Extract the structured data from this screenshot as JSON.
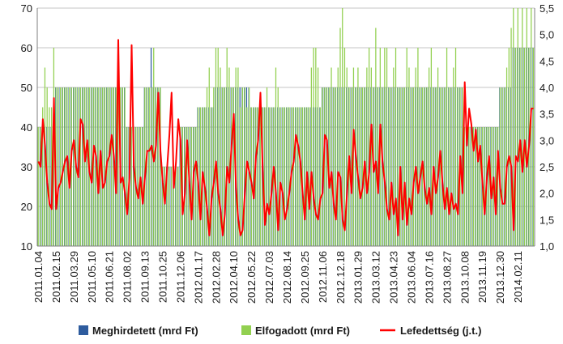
{
  "chart_data": {
    "type": "bar",
    "title": "",
    "xlabel": "",
    "ylabel": "",
    "ylabel_right": "",
    "ylim": [
      10,
      70
    ],
    "y2lim": [
      1.0,
      5.5
    ],
    "grid": "horizontal",
    "legend_position": "bottom",
    "y_ticks": [
      "10",
      "20",
      "30",
      "40",
      "50",
      "60",
      "70"
    ],
    "y2_ticks": [
      "1,0",
      "1,5",
      "2,0",
      "2,5",
      "3,0",
      "3,5",
      "4,0",
      "4,5",
      "5,0",
      "5,5"
    ],
    "x_labels": [
      "2011.01.04",
      "2011.02.15",
      "2011.03.29",
      "2011.05.10",
      "2011.06.21",
      "2011.08.02",
      "2011.09.13",
      "2011.10.25",
      "2011.12.06",
      "2012.01.17",
      "2012.02.28",
      "2012.04.10",
      "2012.05.22",
      "2012.07.03",
      "2012.08.14",
      "2012.09.25",
      "2012.11.06",
      "2012.12.18",
      "2013.01.29",
      "2013.03.12",
      "2013.04.23",
      "2013.06.04",
      "2013.07.16",
      "2013.08.27",
      "2013.10.08",
      "2013.11.19",
      "2013.12.30",
      "2014.02.11"
    ],
    "series": [
      {
        "name": "Meghirdetett (mrd Ft)",
        "axis": "left",
        "color": "#2e5c9e",
        "values": [
          40,
          40,
          40,
          40,
          40,
          40,
          40,
          40,
          50,
          50,
          50,
          50,
          50,
          50,
          50,
          50,
          50,
          50,
          50,
          50,
          50,
          50,
          50,
          50,
          50,
          50,
          50,
          50,
          50,
          50,
          50,
          50,
          50,
          50,
          50,
          50,
          50,
          50,
          50,
          50,
          40,
          40,
          40,
          40,
          40,
          40,
          40,
          40,
          50,
          50,
          50,
          60,
          50,
          50,
          50,
          50,
          30,
          30,
          30,
          30,
          30,
          30,
          30,
          30,
          40,
          40,
          40,
          40,
          40,
          40,
          40,
          40,
          45,
          45,
          45,
          45,
          45,
          45,
          45,
          45,
          50,
          50,
          50,
          50,
          50,
          50,
          50,
          50,
          50,
          50,
          50,
          50,
          50,
          50,
          50,
          50,
          45,
          45,
          45,
          45,
          45,
          45,
          45,
          45,
          45,
          45,
          45,
          45,
          45,
          45,
          45,
          45,
          45,
          45,
          45,
          45,
          45,
          45,
          45,
          45,
          45,
          45,
          45,
          45,
          45,
          45,
          45,
          45,
          50,
          50,
          50,
          50,
          50,
          50,
          50,
          50,
          50,
          50,
          50,
          50,
          50,
          50,
          50,
          50,
          50,
          50,
          50,
          50,
          50,
          50,
          50,
          50,
          50,
          50,
          50,
          50,
          50,
          50,
          50,
          50,
          50,
          50,
          50,
          50,
          50,
          50,
          50,
          50,
          50,
          50,
          50,
          50,
          50,
          50,
          50,
          50,
          50,
          50,
          50,
          50,
          50,
          50,
          50,
          50,
          50,
          50,
          50,
          50,
          50,
          50,
          50,
          50,
          40,
          40,
          40,
          40,
          40,
          40,
          40,
          40,
          40,
          40,
          40,
          40,
          40,
          40,
          40,
          40,
          50,
          50,
          50,
          50,
          50,
          50,
          60,
          60,
          60,
          60,
          60,
          60,
          60,
          60,
          60,
          60
        ]
      },
      {
        "name": "Elfogadott (mrd Ft)",
        "axis": "left",
        "color": "#92d050",
        "values": [
          40,
          40,
          45,
          55,
          50,
          45,
          45,
          60,
          50,
          50,
          50,
          50,
          50,
          50,
          50,
          50,
          50,
          50,
          50,
          50,
          50,
          50,
          50,
          50,
          50,
          50,
          50,
          50,
          50,
          50,
          50,
          50,
          50,
          50,
          50,
          50,
          50,
          50,
          50,
          50,
          40,
          40,
          40,
          40,
          40,
          40,
          40,
          40,
          50,
          50,
          50,
          50,
          60,
          50,
          50,
          50,
          30,
          30,
          30,
          30,
          30,
          30,
          30,
          30,
          40,
          40,
          40,
          40,
          40,
          40,
          40,
          40,
          45,
          45,
          45,
          45,
          50,
          55,
          45,
          50,
          60,
          60,
          55,
          50,
          50,
          60,
          55,
          50,
          50,
          55,
          55,
          45,
          50,
          50,
          45,
          50,
          45,
          45,
          45,
          45,
          45,
          45,
          45,
          50,
          45,
          45,
          45,
          55,
          50,
          45,
          45,
          45,
          45,
          45,
          45,
          45,
          45,
          45,
          45,
          45,
          45,
          45,
          45,
          55,
          60,
          60,
          55,
          45,
          50,
          50,
          50,
          50,
          55,
          50,
          50,
          55,
          65,
          70,
          60,
          55,
          50,
          50,
          55,
          50,
          55,
          50,
          50,
          50,
          55,
          60,
          55,
          50,
          65,
          50,
          60,
          50,
          60,
          60,
          50,
          50,
          55,
          60,
          50,
          50,
          50,
          50,
          60,
          55,
          50,
          50,
          55,
          60,
          50,
          50,
          50,
          50,
          55,
          60,
          50,
          50,
          55,
          50,
          50,
          50,
          60,
          50,
          50,
          55,
          60,
          50,
          50,
          50,
          40,
          40,
          40,
          40,
          40,
          40,
          40,
          40,
          40,
          40,
          40,
          40,
          40,
          40,
          40,
          40,
          50,
          50,
          50,
          55,
          60,
          65,
          70,
          60,
          70,
          60,
          70,
          60,
          70,
          60,
          70,
          60
        ]
      },
      {
        "name": "Lefedettség (j.t.)",
        "axis": "right",
        "type": "line",
        "color": "#ff0000",
        "values": [
          2.6,
          2.5,
          3.4,
          2.9,
          2.2,
          1.8,
          1.7,
          3.8,
          1.7,
          2.1,
          2.2,
          2.4,
          2.6,
          2.7,
          2.1,
          2.8,
          3.0,
          2.5,
          2.3,
          3.4,
          3.3,
          2.6,
          3.0,
          2.4,
          2.2,
          2.9,
          2.7,
          2.0,
          2.8,
          2.1,
          2.2,
          2.6,
          2.7,
          3.1,
          2.7,
          2.0,
          4.9,
          2.2,
          2.3,
          2.0,
          1.6,
          2.3,
          4.8,
          2.5,
          2.1,
          1.9,
          2.3,
          1.8,
          2.3,
          2.8,
          2.8,
          2.9,
          2.6,
          2.9,
          3.9,
          2.8,
          2.2,
          1.8,
          2.5,
          3.1,
          3.9,
          2.1,
          2.6,
          3.4,
          3.0,
          1.6,
          2.0,
          3.0,
          2.2,
          1.5,
          2.4,
          2.6,
          2.2,
          1.5,
          2.4,
          2.1,
          1.7,
          1.2,
          1.9,
          2.2,
          2.6,
          2.0,
          1.7,
          1.2,
          1.6,
          2.5,
          2.2,
          2.9,
          3.5,
          2.1,
          1.5,
          1.2,
          1.3,
          2.0,
          2.6,
          2.4,
          2.2,
          1.9,
          2.7,
          3.0,
          3.9,
          2.5,
          1.4,
          1.8,
          1.6,
          2.0,
          2.5,
          2.0,
          1.3,
          2.2,
          2.0,
          1.5,
          1.7,
          2.0,
          2.4,
          2.6,
          3.1,
          2.9,
          2.6,
          2.0,
          1.5,
          2.4,
          1.7,
          2.4,
          1.9,
          1.6,
          1.5,
          1.9,
          2.0,
          3.1,
          3.0,
          2.1,
          2.4,
          1.8,
          1.5,
          2.4,
          2.3,
          1.5,
          1.3,
          2.0,
          2.7,
          2.0,
          3.2,
          2.7,
          2.3,
          1.9,
          2.1,
          2.6,
          2.0,
          2.4,
          3.3,
          2.4,
          2.6,
          2.0,
          3.3,
          2.6,
          2.2,
          1.7,
          1.5,
          2.2,
          1.6,
          1.9,
          1.2,
          2.5,
          1.5,
          2.2,
          1.4,
          1.9,
          1.6,
          2.2,
          2.5,
          2.0,
          2.3,
          2.6,
          2.1,
          1.8,
          2.1,
          1.6,
          2.5,
          2.0,
          2.3,
          2.8,
          2.2,
          1.7,
          2.1,
          1.6,
          2.0,
          1.7,
          1.8,
          1.6,
          2.7,
          2.0,
          4.1,
          2.9,
          3.6,
          3.3,
          2.8,
          3.2,
          2.6,
          2.9,
          2.2,
          1.6,
          2.3,
          2.7,
          1.9,
          2.3,
          1.6,
          2.8,
          2.1,
          1.8,
          1.8,
          2.5,
          2.7,
          2.5,
          1.3,
          2.7,
          2.6,
          3.0,
          2.4,
          3.0,
          2.5,
          2.9,
          3.6,
          3.6
        ]
      }
    ]
  }
}
